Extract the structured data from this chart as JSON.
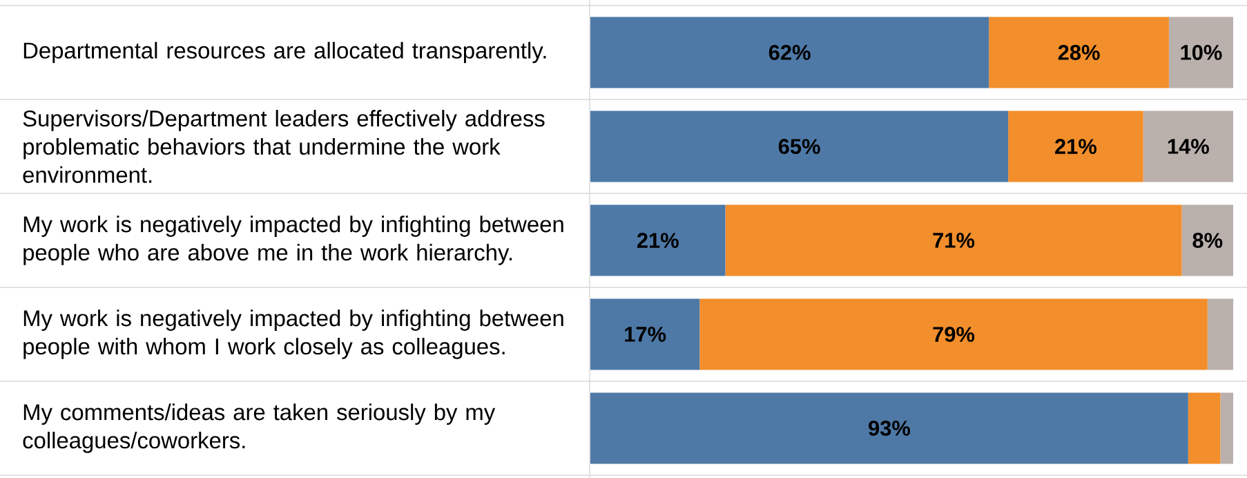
{
  "chart_data": {
    "type": "bar",
    "orientation": "horizontal",
    "stacked": true,
    "categories": [
      "Departmental resources are allocated transparently.",
      "Supervisors/Department leaders effectively address problematic behaviors that undermine the work environment.",
      "My work is negatively impacted by infighting between people who are above me in the work hierarchy.",
      "My work is negatively impacted by infighting between people with whom I work closely as colleagues.",
      "My comments/ideas are taken seriously by my colleagues/coworkers."
    ],
    "series": [
      {
        "color": "#4e79a7",
        "values": [
          62,
          65,
          21,
          17,
          93
        ],
        "value_labels": [
          "62%",
          "65%",
          "21%",
          "17%",
          "93%"
        ]
      },
      {
        "color": "#f28e2b",
        "values": [
          28,
          21,
          71,
          79,
          5
        ],
        "value_labels": [
          "28%",
          "21%",
          "71%",
          "79%",
          null
        ]
      },
      {
        "color": "#bab0ac",
        "values": [
          10,
          14,
          8,
          4,
          2
        ],
        "value_labels": [
          "10%",
          "14%",
          "8%",
          null,
          null
        ]
      }
    ]
  }
}
